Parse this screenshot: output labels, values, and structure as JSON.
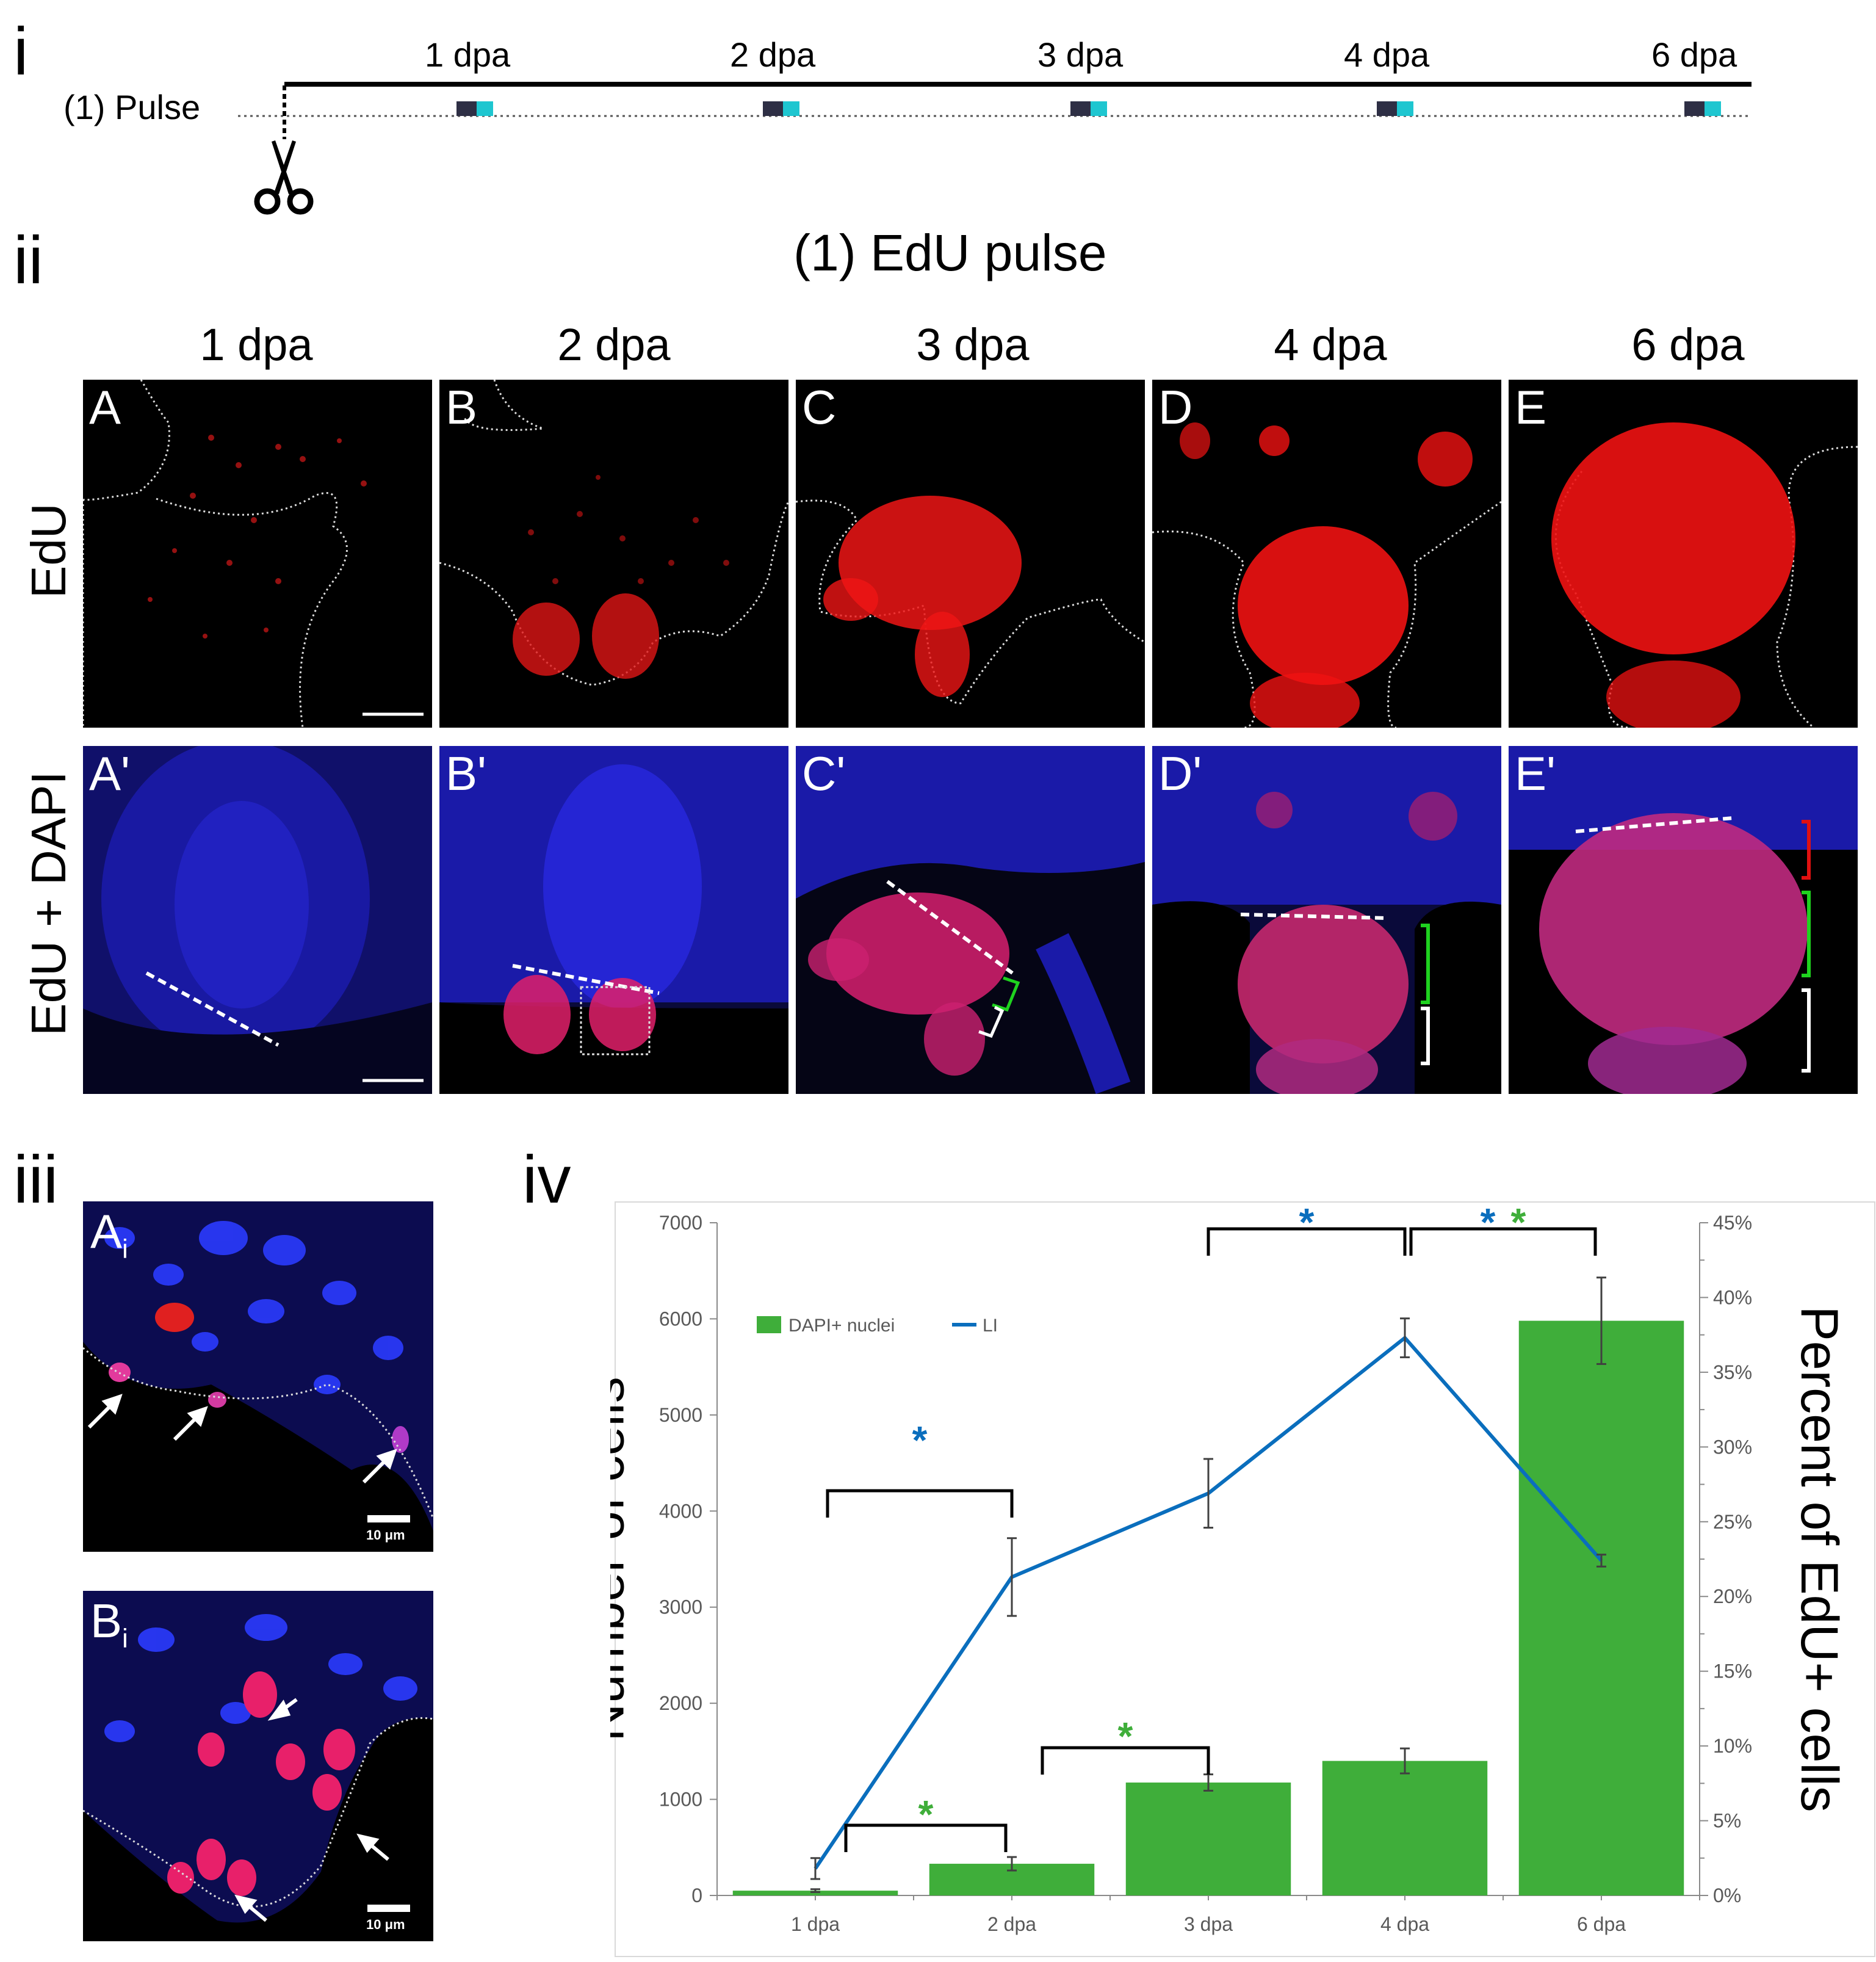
{
  "section_labels": {
    "i": "i",
    "ii": "ii",
    "iii": "iii",
    "iv": "iv"
  },
  "timeline": {
    "row_label": "(1) Pulse",
    "time_labels": [
      "1 dpa",
      "2 dpa",
      "3 dpa",
      "4 dpa",
      "6 dpa"
    ],
    "icon": "scissors-icon"
  },
  "panel_ii": {
    "title": "(1) EdU pulse",
    "column_labels": [
      "1 dpa",
      "2 dpa",
      "3 dpa",
      "4 dpa",
      "6 dpa"
    ],
    "row_labels": [
      "EdU",
      "EdU + DAPI"
    ],
    "row1_panel_labels": [
      "A",
      "B",
      "C",
      "D",
      "E"
    ],
    "row2_panel_labels": [
      "A'",
      "B'",
      "C'",
      "D'",
      "E'"
    ]
  },
  "panel_iii": {
    "labels": [
      "A",
      "B"
    ],
    "subscript": "i",
    "scale_bar": "10 μm"
  },
  "colors": {
    "edu": "#ff2a2a",
    "dapi": "#1e2bff",
    "bar": "#3fae3a",
    "line": "#0a6ebd",
    "sig_blue": "#0a6ebd",
    "sig_green": "#3fae3a",
    "bracket_green": "#1fd21f"
  },
  "chart_data": {
    "type": "bar",
    "categories": [
      "1 dpa",
      "2 dpa",
      "3 dpa",
      "4 dpa",
      "6  dpa"
    ],
    "series": [
      {
        "name": "DAPI+ nuclei",
        "kind": "bar",
        "axis": "left",
        "values": [
          50,
          330,
          1175,
          1400,
          5980
        ],
        "errors": [
          15,
          70,
          85,
          130,
          450
        ]
      },
      {
        "name": "LI",
        "kind": "line",
        "axis": "right",
        "values": [
          1.8,
          21.3,
          26.9,
          37.3,
          22.4
        ],
        "errors": [
          0.7,
          2.6,
          2.3,
          1.3,
          0.4
        ]
      }
    ],
    "ylabel": "Number of cells",
    "y2label": "Percent of EdU+ cells",
    "ylim": [
      0,
      7000
    ],
    "yticks": [
      0,
      1000,
      2000,
      3000,
      4000,
      5000,
      6000,
      7000
    ],
    "y2lim": [
      0,
      45
    ],
    "y2ticks": [
      "0%",
      "5%",
      "10%",
      "15%",
      "20%",
      "25%",
      "30%",
      "35%",
      "40%",
      "45%"
    ],
    "legend": {
      "placement": "upper-left",
      "entries": [
        "DAPI+ nuclei",
        "LI"
      ]
    },
    "grid": false,
    "significance": [
      {
        "from": 0,
        "to": 1,
        "series": "LI",
        "marks": [
          "*"
        ],
        "colors": [
          "#0a6ebd"
        ]
      },
      {
        "from": 2,
        "to": 3,
        "series": "LI",
        "marks": [
          "*"
        ],
        "colors": [
          "#0a6ebd"
        ]
      },
      {
        "from": 3,
        "to": 4,
        "series": "both",
        "marks": [
          "*",
          "*"
        ],
        "colors": [
          "#0a6ebd",
          "#3fae3a"
        ]
      },
      {
        "from": 0,
        "to": 1,
        "series": "DAPI+ nuclei",
        "marks": [
          "*"
        ],
        "colors": [
          "#3fae3a"
        ]
      },
      {
        "from": 1,
        "to": 2,
        "series": "DAPI+ nuclei",
        "marks": [
          "*"
        ],
        "colors": [
          "#3fae3a"
        ]
      }
    ]
  }
}
